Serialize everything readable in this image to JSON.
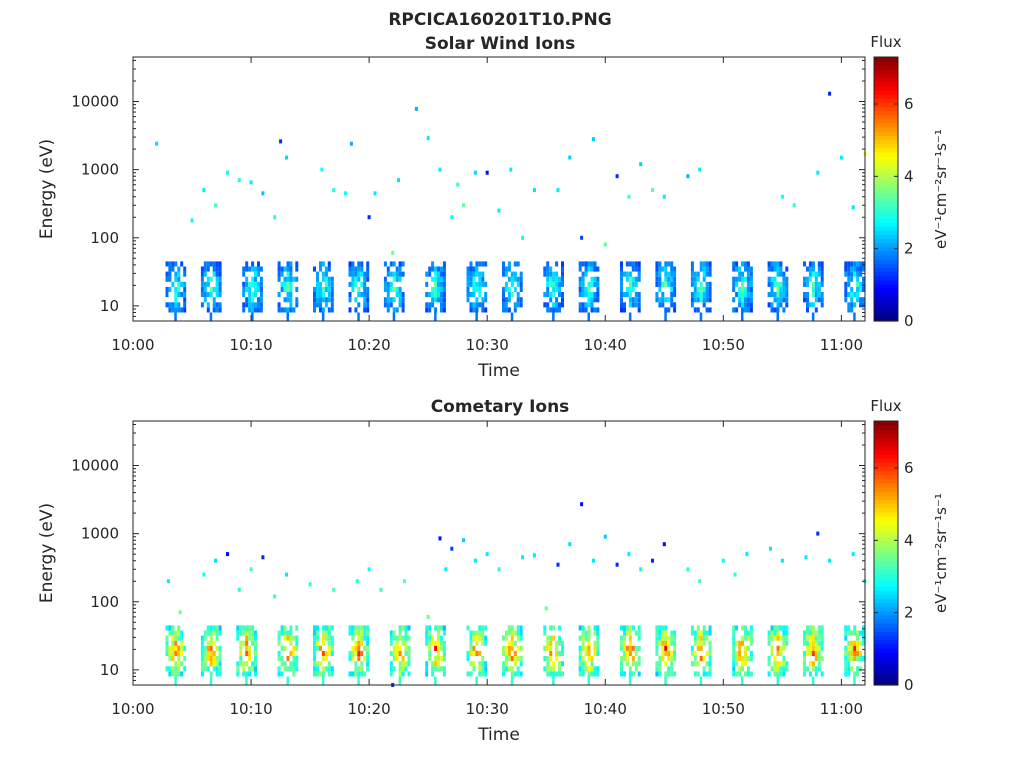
{
  "figure_title": "RPCICA160201T10.PNG",
  "panels": [
    {
      "id": "solar",
      "title": "Solar Wind Ions"
    },
    {
      "id": "comet",
      "title": "Cometary Ions"
    }
  ],
  "axis_labels": {
    "x": "Time",
    "y": "Energy (eV)"
  },
  "colorbar": {
    "title": "Flux",
    "unit": "eV⁻¹cm⁻²sr⁻¹s⁻¹",
    "ticks": [
      "0",
      "2",
      "4",
      "6"
    ],
    "range": [
      0,
      7.3
    ],
    "colormap": "jet"
  },
  "chart_data": [
    {
      "type": "heatmap",
      "title": "Solar Wind Ions",
      "xlabel": "Time",
      "ylabel": "Energy (eV)",
      "x_range": [
        "10:00",
        "11:02"
      ],
      "y_range": [
        6,
        45000
      ],
      "y_scale": "log",
      "x_ticks": [
        "10:00",
        "10:10",
        "10:20",
        "10:30",
        "10:40",
        "10:50",
        "11:00"
      ],
      "y_ticks": [
        "10",
        "100",
        "1000",
        "10000"
      ],
      "sweep_times": [
        "10:03.5",
        "10:06.5",
        "10:10",
        "10:13",
        "10:16",
        "10:19",
        "10:22",
        "10:25.5",
        "10:29",
        "10:32",
        "10:35.5",
        "10:38.5",
        "10:42",
        "10:45",
        "10:48",
        "10:51.5",
        "10:54.5",
        "10:57.5",
        "11:01"
      ],
      "band": {
        "energy_low": 8,
        "energy_high": 45,
        "flux_peak": 3.5
      },
      "sparse_points": [
        [
          "10:02",
          2400,
          2.5
        ],
        [
          "10:05",
          180,
          2.8
        ],
        [
          "10:06",
          500,
          2.6
        ],
        [
          "10:07",
          300,
          3.2
        ],
        [
          "10:08",
          900,
          2.8
        ],
        [
          "10:09",
          700,
          3.0
        ],
        [
          "10:10",
          650,
          2.6
        ],
        [
          "10:11",
          450,
          2.3
        ],
        [
          "10:12",
          200,
          3.0
        ],
        [
          "10:12.5",
          2600,
          1.2
        ],
        [
          "10:13",
          1500,
          2.5
        ],
        [
          "10:16",
          1000,
          2.8
        ],
        [
          "10:17",
          500,
          3.0
        ],
        [
          "10:18",
          450,
          2.8
        ],
        [
          "10:18.5",
          2400,
          2.2
        ],
        [
          "10:20",
          200,
          1.2
        ],
        [
          "10:20.5",
          450,
          2.6
        ],
        [
          "10:22",
          60,
          3.5
        ],
        [
          "10:22.5",
          700,
          2.5
        ],
        [
          "10:24",
          7800,
          2.2
        ],
        [
          "10:25",
          2900,
          2.6
        ],
        [
          "10:26",
          1000,
          2.6
        ],
        [
          "10:27",
          200,
          2.8
        ],
        [
          "10:27.5",
          600,
          3.2
        ],
        [
          "10:28",
          300,
          3.4
        ],
        [
          "10:29",
          900,
          2.5
        ],
        [
          "10:30",
          900,
          1.0
        ],
        [
          "10:31",
          250,
          2.6
        ],
        [
          "10:32",
          1000,
          2.6
        ],
        [
          "10:33",
          100,
          2.8
        ],
        [
          "10:34",
          500,
          2.5
        ],
        [
          "10:36",
          500,
          2.6
        ],
        [
          "10:37",
          1500,
          2.4
        ],
        [
          "10:38",
          100,
          1.4
        ],
        [
          "10:39",
          2800,
          2.4
        ],
        [
          "10:40",
          80,
          3.4
        ],
        [
          "10:41",
          800,
          1.2
        ],
        [
          "10:42",
          400,
          3.2
        ],
        [
          "10:43",
          1200,
          2.4
        ],
        [
          "10:44",
          500,
          3.4
        ],
        [
          "10:45",
          400,
          2.6
        ],
        [
          "10:47",
          800,
          2.2
        ],
        [
          "10:48",
          1000,
          2.6
        ],
        [
          "10:55",
          400,
          2.8
        ],
        [
          "10:56",
          300,
          3.0
        ],
        [
          "10:58",
          900,
          2.6
        ],
        [
          "10:59",
          13000,
          1.2
        ],
        [
          "11:00",
          1500,
          2.6
        ],
        [
          "11:01",
          280,
          2.6
        ],
        [
          "11:02",
          1700,
          4.5
        ]
      ]
    },
    {
      "type": "heatmap",
      "title": "Cometary Ions",
      "xlabel": "Time",
      "ylabel": "Energy (eV)",
      "x_range": [
        "10:00",
        "11:02"
      ],
      "y_range": [
        6,
        45000
      ],
      "y_scale": "log",
      "x_ticks": [
        "10:00",
        "10:10",
        "10:20",
        "10:30",
        "10:40",
        "10:50",
        "11:00"
      ],
      "y_ticks": [
        "10",
        "100",
        "1000",
        "10000"
      ],
      "sweep_times": [
        "10:03.5",
        "10:06.5",
        "10:09.5",
        "10:13",
        "10:16",
        "10:19",
        "10:22.5",
        "10:25.5",
        "10:29",
        "10:32",
        "10:35.5",
        "10:38.5",
        "10:42",
        "10:45",
        "10:48",
        "10:51.5",
        "10:54.5",
        "10:57.5",
        "11:01"
      ],
      "band": {
        "energy_low": 8,
        "energy_high": 45,
        "flux_peak": 6.2
      },
      "sparse_points": [
        [
          "10:03",
          200,
          2.6
        ],
        [
          "10:04",
          70,
          3.5
        ],
        [
          "10:06",
          250,
          2.8
        ],
        [
          "10:07",
          400,
          2.5
        ],
        [
          "10:08",
          500,
          1.0
        ],
        [
          "10:09",
          150,
          3.0
        ],
        [
          "10:10",
          300,
          3.2
        ],
        [
          "10:11",
          450,
          1.2
        ],
        [
          "10:12",
          120,
          3.2
        ],
        [
          "10:13",
          250,
          2.6
        ],
        [
          "10:15",
          180,
          3.0
        ],
        [
          "10:17",
          150,
          3.2
        ],
        [
          "10:19",
          200,
          3.0
        ],
        [
          "10:20",
          300,
          2.8
        ],
        [
          "10:21",
          150,
          3.2
        ],
        [
          "10:22",
          6,
          1.2
        ],
        [
          "10:23",
          200,
          3.4
        ],
        [
          "10:25",
          60,
          3.5
        ],
        [
          "10:26",
          850,
          1.0
        ],
        [
          "10:26.5",
          300,
          2.6
        ],
        [
          "10:27",
          600,
          1.4
        ],
        [
          "10:28",
          800,
          2.4
        ],
        [
          "10:29",
          400,
          2.6
        ],
        [
          "10:30",
          500,
          2.6
        ],
        [
          "10:31",
          300,
          3.0
        ],
        [
          "10:33",
          450,
          2.6
        ],
        [
          "10:34",
          480,
          2.6
        ],
        [
          "10:35",
          80,
          3.5
        ],
        [
          "10:36",
          350,
          1.2
        ],
        [
          "10:37",
          700,
          2.5
        ],
        [
          "10:38",
          2700,
          1.0
        ],
        [
          "10:39",
          400,
          2.6
        ],
        [
          "10:40",
          900,
          2.4
        ],
        [
          "10:41",
          350,
          1.2
        ],
        [
          "10:42",
          500,
          2.6
        ],
        [
          "10:43",
          300,
          2.8
        ],
        [
          "10:44",
          400,
          1.2
        ],
        [
          "10:45",
          700,
          1.0
        ],
        [
          "10:47",
          300,
          3.0
        ],
        [
          "10:48",
          200,
          3.2
        ],
        [
          "10:50",
          400,
          2.8
        ],
        [
          "10:51",
          250,
          3.0
        ],
        [
          "10:52",
          500,
          2.6
        ],
        [
          "10:54",
          600,
          2.6
        ],
        [
          "10:55",
          400,
          2.6
        ],
        [
          "10:57",
          450,
          2.6
        ],
        [
          "10:58",
          1000,
          1.2
        ],
        [
          "10:59",
          400,
          2.6
        ],
        [
          "11:01",
          500,
          2.6
        ],
        [
          "11:02",
          200,
          3.0
        ]
      ]
    }
  ]
}
